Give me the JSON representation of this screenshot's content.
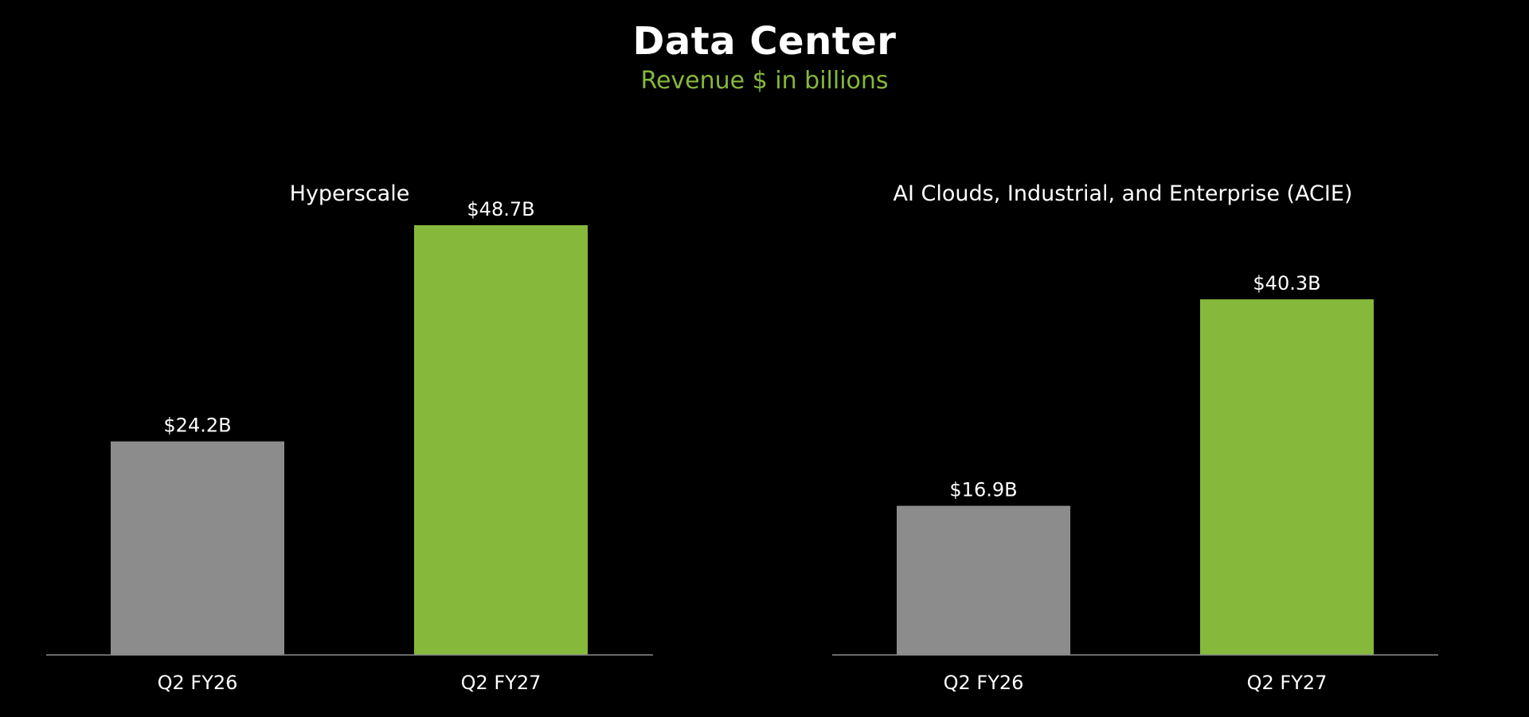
{
  "header": {
    "title": "Data Center",
    "subtitle": "Revenue $ in billions"
  },
  "colors": {
    "background": "#000000",
    "prior": "#8c8c8c",
    "current": "#86b83b",
    "subtitle": "#86b83b",
    "axis": "#8c8c8c"
  },
  "chart_data": [
    {
      "type": "bar",
      "title": "Hyperscale",
      "categories": [
        "Q2 FY26",
        "Q2 FY27"
      ],
      "values": [
        24.2,
        48.7
      ],
      "value_labels": [
        "$24.2B",
        "$48.7B"
      ],
      "bar_colors": [
        "#8c8c8c",
        "#86b83b"
      ],
      "xlabel": "",
      "ylabel": "",
      "ylim": [
        0,
        53.5
      ],
      "grid": false
    },
    {
      "type": "bar",
      "title": "AI Clouds, Industrial, and Enterprise (ACIE)",
      "categories": [
        "Q2 FY26",
        "Q2 FY27"
      ],
      "values": [
        16.9,
        40.3
      ],
      "value_labels": [
        "$16.9B",
        "$40.3B"
      ],
      "bar_colors": [
        "#8c8c8c",
        "#86b83b"
      ],
      "xlabel": "",
      "ylabel": "",
      "ylim": [
        0,
        53.5
      ],
      "grid": false
    }
  ]
}
